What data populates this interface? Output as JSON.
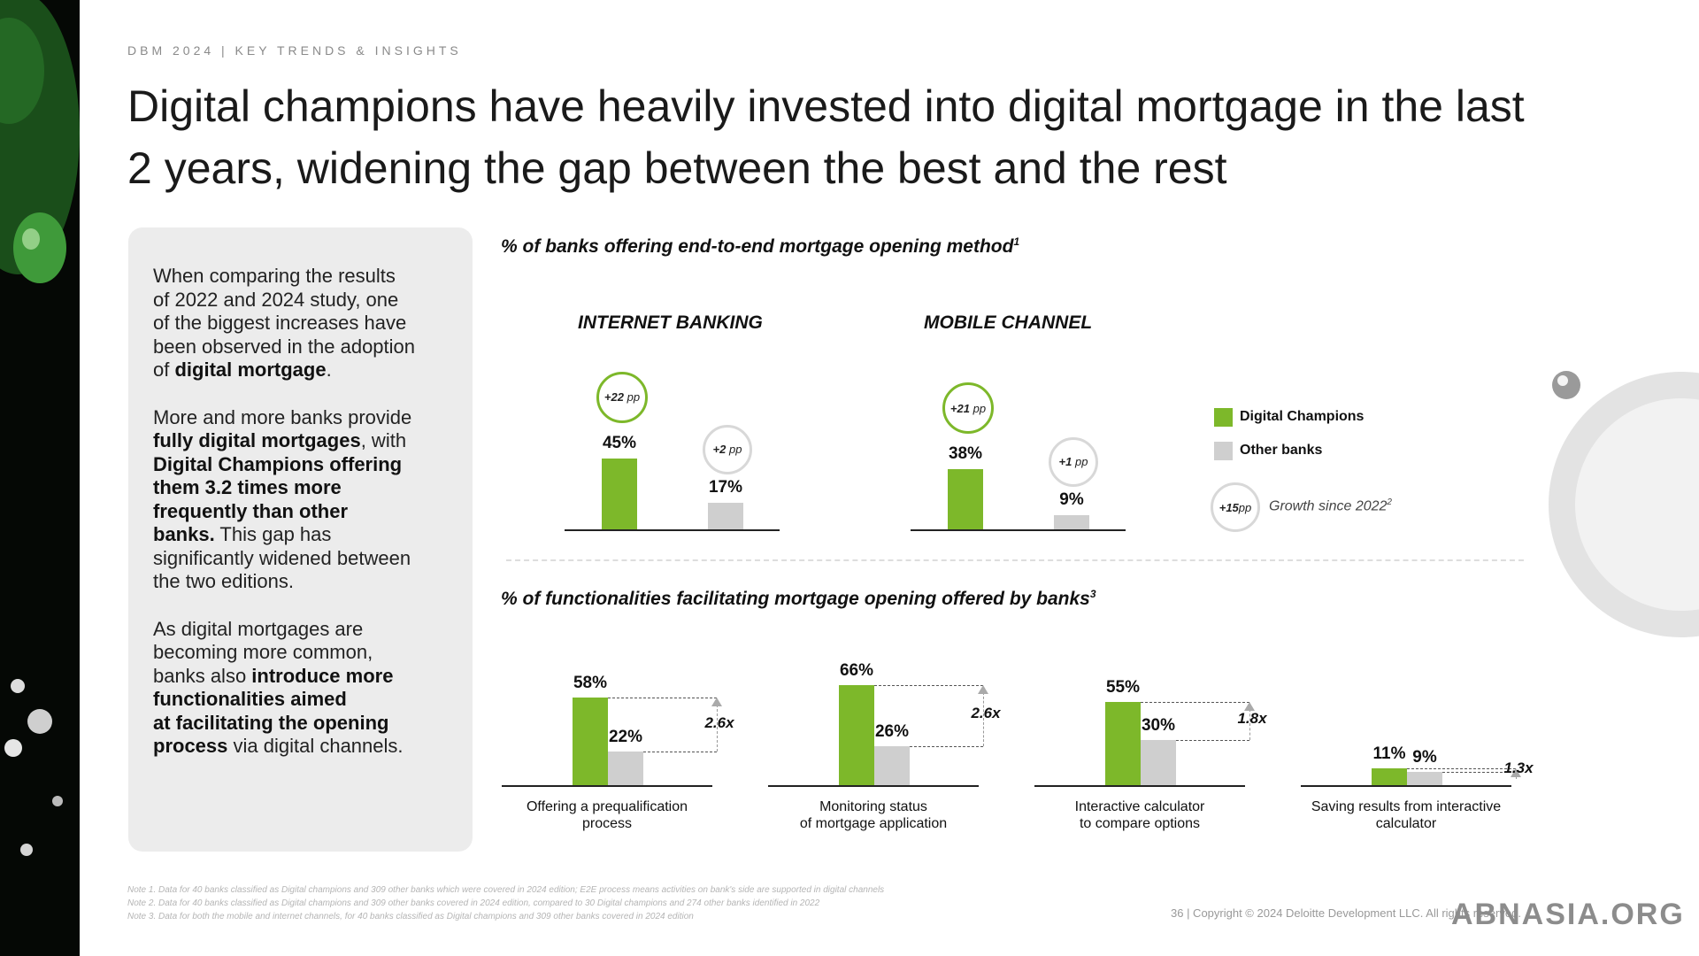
{
  "header": {
    "label": "DBM 2024 | KEY TRENDS & INSIGHTS"
  },
  "title": {
    "line1": "Digital champions have heavily invested into digital mortgage in the last",
    "line2": "2 years, widening the gap between the best and the rest"
  },
  "panel": {
    "p1": [
      "When comparing the results",
      "of 2022 and 2024 study, one",
      "of the biggest increases have",
      "been observed in the adoption",
      "of ",
      "digital mortgage",
      "."
    ],
    "p2": [
      "More and more banks provide",
      "fully digital mortgages",
      ", with",
      "Digital Champions offering",
      "them 3.2 times more",
      "frequently than other",
      "banks.",
      " This gap has",
      "significantly widened between",
      "the two editions."
    ],
    "p3": [
      "As digital mortgages are",
      "becoming more common,",
      "banks also ",
      "introduce more",
      "functionalities aimed",
      "at facilitating the opening",
      "process",
      " via digital channels."
    ]
  },
  "colors": {
    "digital_champions": "#7db82a",
    "other_banks": "#cfcfcf"
  },
  "legend": {
    "digital_champions": "Digital Champions",
    "other_banks": "Other banks",
    "growth_value": "+15",
    "growth_unit": "pp",
    "growth_label": "Growth since 2022",
    "growth_sup": "2"
  },
  "chart_data": [
    {
      "type": "bar",
      "title": "% of banks offering end-to-end mortgage opening method",
      "title_sup": "1",
      "groups": [
        {
          "name": "INTERNET BANKING",
          "values": {
            "Digital Champions": 45,
            "Other banks": 17
          },
          "labels": {
            "Digital Champions": "45%",
            "Other banks": "17%"
          },
          "growth": {
            "Digital Champions": "+22",
            "Other banks": "+2"
          }
        },
        {
          "name": "MOBILE CHANNEL",
          "values": {
            "Digital Champions": 38,
            "Other banks": 9
          },
          "labels": {
            "Digital Champions": "38%",
            "Other banks": "9%"
          },
          "growth": {
            "Digital Champions": "+21",
            "Other banks": "+1"
          }
        }
      ],
      "growth_unit": "pp",
      "series": [
        "Digital Champions",
        "Other banks"
      ]
    },
    {
      "type": "bar",
      "title": "% of functionalities facilitating mortgage opening offered by banks",
      "title_sup": "3",
      "series": [
        "Digital Champions",
        "Other banks"
      ],
      "categories": [
        {
          "label": [
            "Offering a prequalification",
            "process"
          ],
          "dc": 58,
          "other": 22,
          "dc_label": "58%",
          "other_label": "22%",
          "multiple": "2.6x"
        },
        {
          "label": [
            "Monitoring status",
            "of mortgage application"
          ],
          "dc": 66,
          "other": 26,
          "dc_label": "66%",
          "other_label": "26%",
          "multiple": "2.6x"
        },
        {
          "label": [
            "Interactive calculator",
            "to compare options"
          ],
          "dc": 55,
          "other": 30,
          "dc_label": "55%",
          "other_label": "30%",
          "multiple": "1.8x"
        },
        {
          "label": [
            "Saving results from interactive",
            "calculator"
          ],
          "dc": 11,
          "other": 9,
          "dc_label": "11%",
          "other_label": "9%",
          "multiple": "1.3x"
        }
      ]
    }
  ],
  "notes": [
    "Note 1. Data for 40 banks classified as Digital champions and 309 other banks which were covered in 2024 edition; E2E process means activities on bank's side are supported in digital channels",
    "Note 2. Data for 40 banks classified as Digital champions and 309 other banks covered in 2024 edition, compared to 30 Digital champions and 274 other banks identified in 2022",
    "Note 3. Data for both the mobile and internet channels, for 40 banks classified as Digital champions and 309 other banks covered in 2024 edition"
  ],
  "footer": {
    "copyright": "36 | Copyright © 2024 Deloitte Development LLC. All rights reserved.",
    "watermark": "ABNASIA.ORG"
  }
}
